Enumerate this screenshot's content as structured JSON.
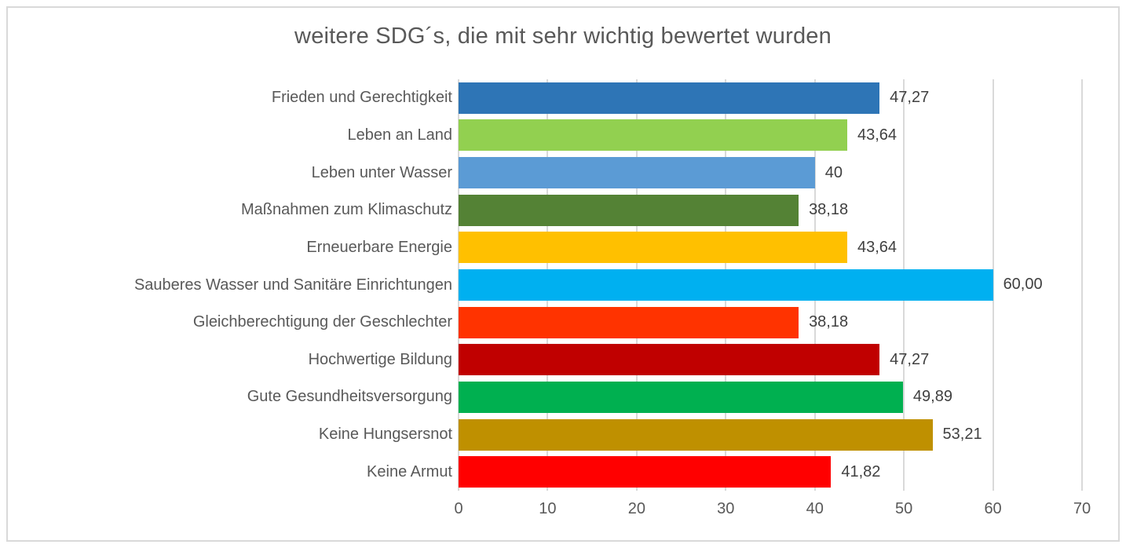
{
  "chart_data": {
    "type": "bar",
    "orientation": "horizontal",
    "title": "weitere SDG´s, die mit sehr wichtig bewertet wurden",
    "categories": [
      "Frieden und Gerechtigkeit",
      "Leben an Land",
      "Leben unter Wasser",
      "Maßnahmen zum Klimaschutz",
      "Erneuerbare Energie",
      "Sauberes Wasser und Sanitäre Einrichtungen",
      "Gleichberechtigung der Geschlechter",
      "Hochwertige Bildung",
      "Gute Gesundheitsversorgung",
      "Keine Hungsersnot",
      "Keine Armut"
    ],
    "values": [
      47.27,
      43.64,
      40,
      38.18,
      43.64,
      60,
      38.18,
      47.27,
      49.89,
      53.21,
      41.82
    ],
    "value_labels": [
      "47,27",
      "43,64",
      "40",
      "38,18",
      "43,64",
      "60,00",
      "38,18",
      "47,27",
      "49,89",
      "53,21",
      "41,82"
    ],
    "bar_colors": [
      "#2E75B6",
      "#92D050",
      "#5B9BD5",
      "#548235",
      "#FFC000",
      "#00B0F0",
      "#FF3300",
      "#C00000",
      "#00B050",
      "#BF9000",
      "#FF0000"
    ],
    "xlabel": "",
    "ylabel": "",
    "xlim": [
      0,
      70
    ],
    "x_ticks": [
      "0",
      "10",
      "20",
      "30",
      "40",
      "50",
      "60",
      "70"
    ],
    "grid": "vertical gridlines only",
    "legend": "none",
    "colors": {
      "title_text": "#595959",
      "category_text": "#595959",
      "value_text": "#404040",
      "tick_text": "#595959",
      "gridline": "#D9D9D9",
      "frame_border": "#D9D9D9",
      "background": "#FFFFFF"
    }
  }
}
